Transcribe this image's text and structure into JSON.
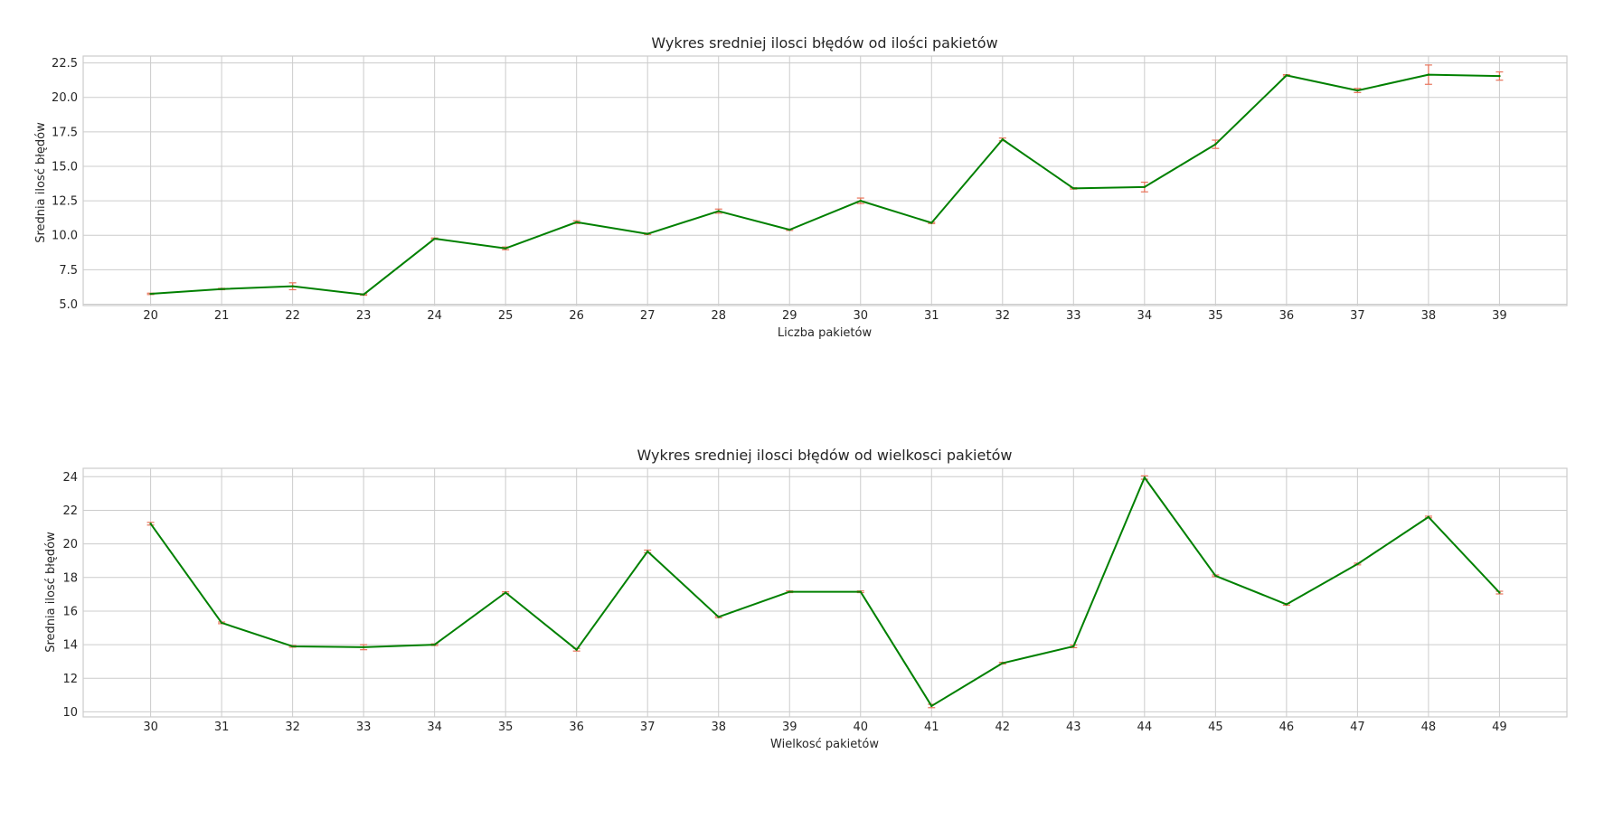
{
  "chart_data": [
    {
      "type": "line",
      "title": "Wykres sredniej ilosci błędów od ilości pakietów",
      "xlabel": "Liczba pakietów",
      "ylabel": "Srednia ilosć błędów",
      "x": [
        20,
        21,
        22,
        23,
        24,
        25,
        26,
        27,
        28,
        29,
        30,
        31,
        32,
        33,
        34,
        35,
        36,
        37,
        38,
        39
      ],
      "ylim": [
        4.9,
        23.0
      ],
      "yticks": [
        5.0,
        7.5,
        10.0,
        12.5,
        15.0,
        17.5,
        20.0,
        22.5
      ],
      "ytick_labels": [
        "5.0",
        "7.5",
        "10.0",
        "12.5",
        "15.0",
        "17.5",
        "20.0",
        "22.5"
      ],
      "grid": true,
      "series": [
        {
          "values": [
            5.75,
            6.1,
            6.3,
            5.7,
            9.75,
            9.05,
            10.95,
            10.1,
            11.75,
            10.4,
            12.5,
            10.9,
            16.95,
            13.4,
            13.5,
            16.6,
            21.6,
            20.5,
            21.65,
            21.55
          ],
          "errors": [
            0.05,
            0.05,
            0.25,
            0.05,
            0.05,
            0.1,
            0.1,
            0.05,
            0.15,
            0.05,
            0.2,
            0.05,
            0.1,
            0.05,
            0.35,
            0.3,
            0.05,
            0.15,
            0.7,
            0.3
          ],
          "color": "#008000",
          "error_color": "#e8735a"
        }
      ]
    },
    {
      "type": "line",
      "title": "Wykres sredniej ilosci błędów od wielkosci pakietów",
      "xlabel": "Wielkosć pakietów",
      "ylabel": "Srednia ilosć błędów",
      "x": [
        30,
        31,
        32,
        33,
        34,
        35,
        36,
        37,
        38,
        39,
        40,
        41,
        42,
        43,
        44,
        45,
        46,
        47,
        48,
        49
      ],
      "ylim": [
        9.7,
        24.5
      ],
      "yticks": [
        10,
        12,
        14,
        16,
        18,
        20,
        22,
        24
      ],
      "ytick_labels": [
        "10",
        "12",
        "14",
        "16",
        "18",
        "20",
        "22",
        "24"
      ],
      "grid": true,
      "series": [
        {
          "values": [
            21.2,
            15.3,
            13.9,
            13.85,
            14.0,
            17.1,
            13.7,
            19.55,
            15.65,
            17.15,
            17.15,
            10.35,
            12.9,
            13.9,
            23.95,
            18.1,
            16.4,
            18.8,
            21.6,
            17.1
          ],
          "errors": [
            0.08,
            0.05,
            0.05,
            0.15,
            0.05,
            0.05,
            0.08,
            0.08,
            0.05,
            0.05,
            0.05,
            0.1,
            0.05,
            0.08,
            0.1,
            0.05,
            0.05,
            0.05,
            0.05,
            0.08
          ],
          "color": "#008000",
          "error_color": "#e8735a"
        }
      ]
    }
  ]
}
